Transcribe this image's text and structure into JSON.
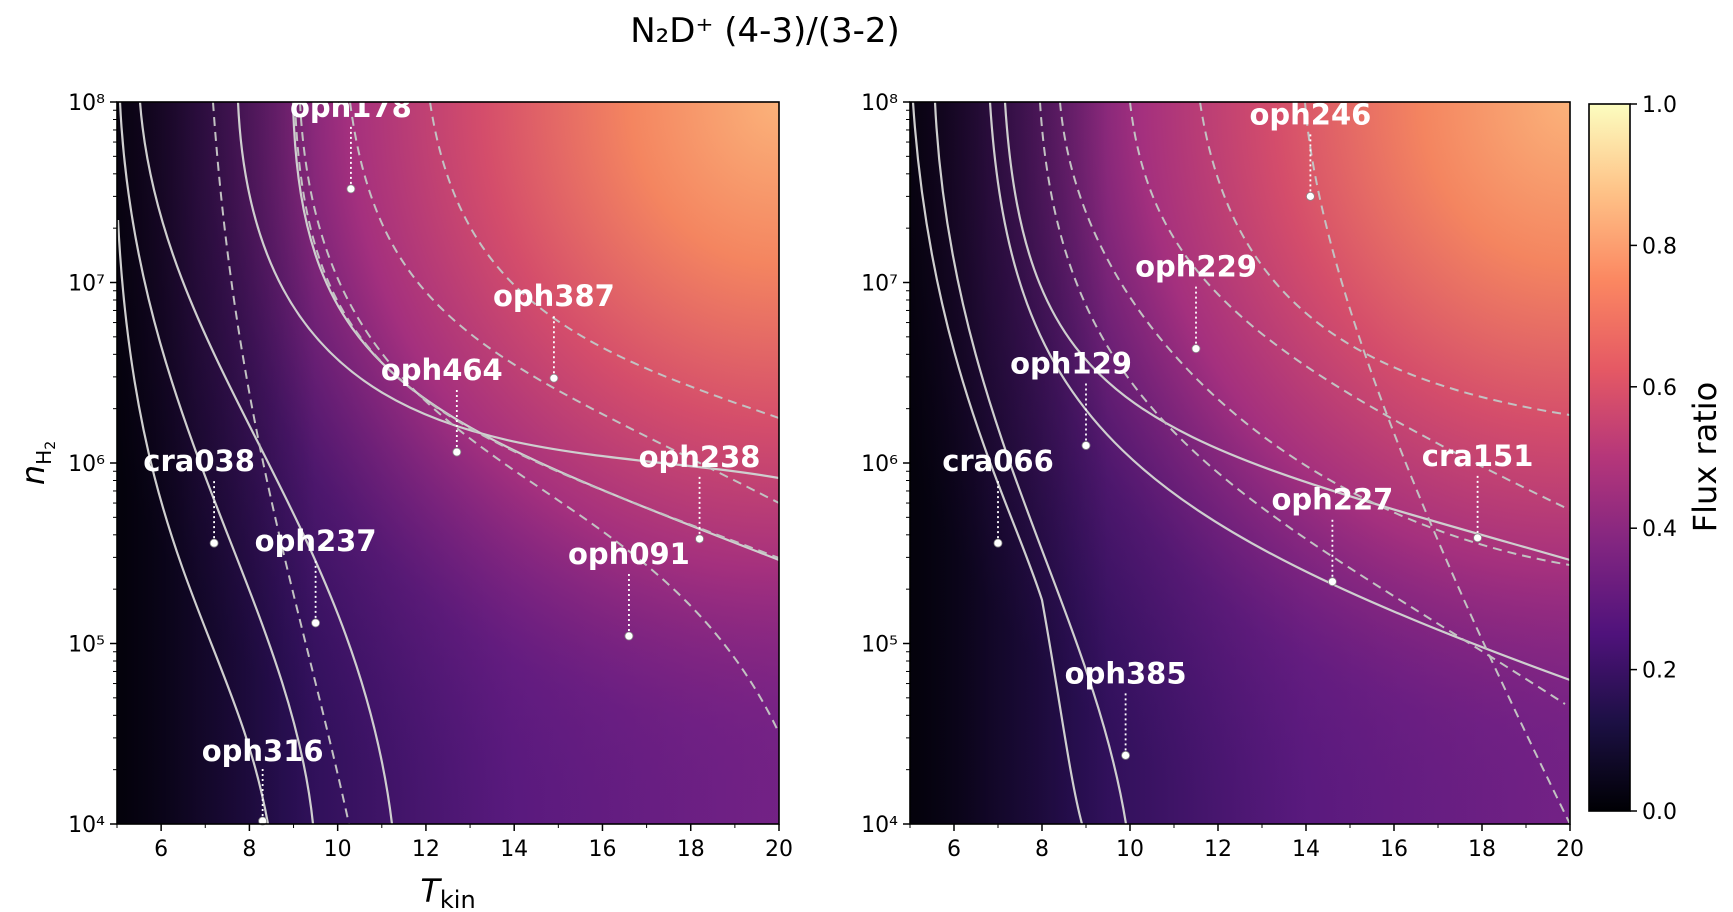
{
  "figure": {
    "title": "N₂D⁺ (4-3)/(3-2)",
    "colorbar_label": "Flux ratio",
    "colorbar_ticks": [
      "0.0",
      "0.2",
      "0.4",
      "0.6",
      "0.8",
      "1.0"
    ],
    "colormap": "magma",
    "colormap_stops": [
      "#000004",
      "#1c1044",
      "#4f127b",
      "#812581",
      "#b5367a",
      "#e55964",
      "#fb8761",
      "#fec287",
      "#fcfdbf"
    ]
  },
  "chart_data": [
    {
      "type": "heatmap",
      "panel": "left",
      "xlabel": "T_kin",
      "ylabel": "n_H2",
      "xlim": [
        5,
        20
      ],
      "ylim": [
        10000,
        100000000
      ],
      "yscale": "log",
      "x_ticks": [
        "6",
        "8",
        "10",
        "12",
        "14",
        "16",
        "18",
        "20"
      ],
      "y_ticks": [
        "10⁴",
        "10⁵",
        "10⁶",
        "10⁷",
        "10⁸"
      ],
      "sources": [
        {
          "name": "oph178",
          "T": 10.3,
          "n": 33000000
        },
        {
          "name": "oph387",
          "T": 14.9,
          "n": 2950000
        },
        {
          "name": "oph464",
          "T": 12.7,
          "n": 1150000
        },
        {
          "name": "cra038",
          "T": 7.2,
          "n": 360000
        },
        {
          "name": "oph238",
          "T": 18.2,
          "n": 380000
        },
        {
          "name": "oph237",
          "T": 9.5,
          "n": 130000
        },
        {
          "name": "oph091",
          "T": 16.6,
          "n": 110000
        },
        {
          "name": "oph316",
          "T": 8.3,
          "n": 10000
        }
      ]
    },
    {
      "type": "heatmap",
      "panel": "right",
      "xlabel": "",
      "ylabel": "",
      "xlim": [
        5,
        20
      ],
      "ylim": [
        10000,
        100000000
      ],
      "yscale": "log",
      "x_ticks": [
        "6",
        "8",
        "10",
        "12",
        "14",
        "16",
        "18",
        "20"
      ],
      "y_ticks": [
        "10⁴",
        "10⁵",
        "10⁶",
        "10⁷",
        "10⁸"
      ],
      "sources": [
        {
          "name": "oph246",
          "T": 14.1,
          "n": 30000000
        },
        {
          "name": "oph229",
          "T": 11.5,
          "n": 4300000
        },
        {
          "name": "oph129",
          "T": 9.0,
          "n": 1250000
        },
        {
          "name": "cra066",
          "T": 7.0,
          "n": 360000
        },
        {
          "name": "cra151",
          "T": 17.9,
          "n": 385000
        },
        {
          "name": "oph227",
          "T": 14.6,
          "n": 220000
        },
        {
          "name": "oph385",
          "T": 9.9,
          "n": 24000
        }
      ]
    }
  ]
}
